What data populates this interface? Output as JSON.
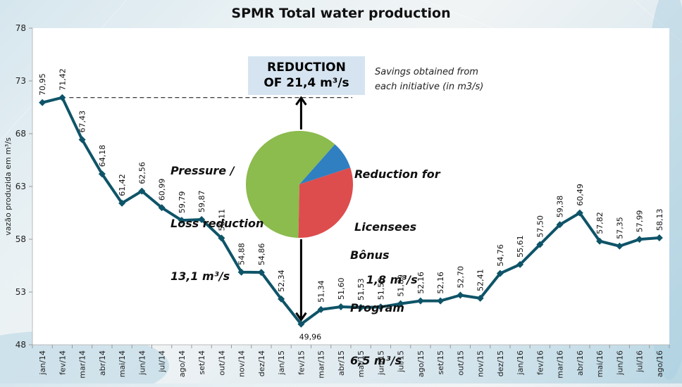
{
  "title": "SPMR Total water production",
  "reduction_box": {
    "line1": "REDUCTION",
    "line2": "OF 21,4 m³/s"
  },
  "savings_note": {
    "line1": "Savings obtained from",
    "line2": "each initiative (in m3/s)"
  },
  "colors": {
    "series": "#0e5468",
    "pie_pressure": "#8cbb4e",
    "pie_licensees": "#2f7fc1",
    "pie_bonus": "#dd4d4d",
    "reduction_box_bg": "#d6e4f1"
  },
  "chart_data": [
    {
      "type": "line",
      "title": "SPMR Total water production",
      "xlabel": "",
      "ylabel": "vazão produzida em m³/s",
      "ylim": [
        48,
        78
      ],
      "yticks": [
        48,
        53,
        58,
        63,
        68,
        73,
        78
      ],
      "grid": false,
      "categories": [
        "jan/14",
        "fev/14",
        "mar/14",
        "abr/14",
        "mai/14",
        "jun/14",
        "jul/14",
        "ago/14",
        "set/14",
        "out/14",
        "nov/14",
        "dez/14",
        "jan/15",
        "fev/15",
        "mar/15",
        "abr/15",
        "mai/15",
        "jun/15",
        "jul/15",
        "ago/15",
        "set/15",
        "out/15",
        "nov/15",
        "dez/15",
        "jan/16",
        "fev/16",
        "mar/16",
        "abr/16",
        "mai/16",
        "jun/16",
        "jul/16",
        "ago/16"
      ],
      "series": [
        {
          "name": "Total water production",
          "values": [
            70.95,
            71.42,
            67.43,
            64.18,
            61.42,
            62.56,
            60.99,
            59.79,
            59.87,
            58.11,
            54.88,
            54.86,
            52.34,
            49.96,
            51.34,
            51.6,
            51.53,
            51.58,
            51.89,
            52.16,
            52.16,
            52.7,
            52.41,
            54.76,
            55.61,
            57.5,
            59.38,
            60.49,
            57.82,
            57.35,
            57.99,
            58.13
          ],
          "labels": [
            "70,95",
            "71,42",
            "67,43",
            "64,18",
            "61,42",
            "62,56",
            "60,99",
            "59,79",
            "59,87",
            "58,11",
            "54,88",
            "54,86",
            "52,34",
            "49,96",
            "51,34",
            "51,60",
            "51,53",
            "51,58",
            "51,89",
            "52,16",
            "52,16",
            "52,70",
            "52,41",
            "54,76",
            "55,61",
            "57,50",
            "59,38",
            "60,49",
            "57,82",
            "57,35",
            "57,99",
            "58,13"
          ]
        }
      ],
      "annotations": {
        "reference_line_value": 71.42,
        "reduction_arrow_from_category": "fev/15",
        "reduction_value": "21,4 m³/s"
      }
    },
    {
      "type": "pie",
      "title": "Savings obtained from each initiative (in m3/s)",
      "slices": [
        {
          "name": "Pressure / Loss reduction",
          "value": 13.1,
          "label": "13,1 m³/s"
        },
        {
          "name": "Reduction for Licensees",
          "value": 1.8,
          "label": "1,8 m³/s"
        },
        {
          "name": "Bônus Program",
          "value": 6.5,
          "label": "6,5 m³/s"
        }
      ]
    }
  ],
  "pie_labels": {
    "pressure": {
      "line1": "Pressure /",
      "line2": "Loss reduction",
      "line3": "13,1 m³/s"
    },
    "licensees": {
      "line1": "Reduction for",
      "line2": "Licensees",
      "line3": "   1,8 m³/s"
    },
    "bonus": {
      "line1": "Bônus",
      "line2": "Program",
      "line3": "6,5 m³/s"
    }
  }
}
